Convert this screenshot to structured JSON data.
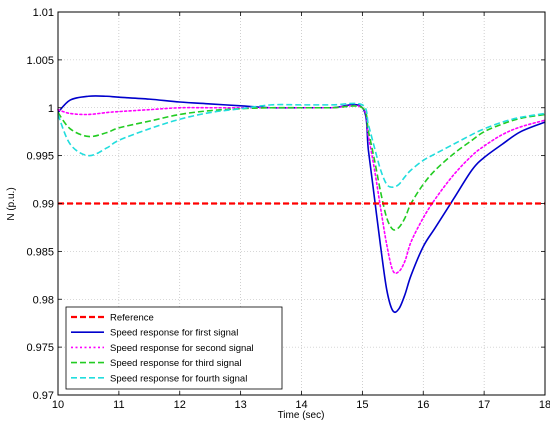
{
  "chart_data": {
    "type": "line",
    "xlabel": "Time (sec)",
    "ylabel": "N (p.u.)",
    "xlim": [
      10,
      18
    ],
    "ylim": [
      0.97,
      1.01
    ],
    "xticks": [
      "10",
      "11",
      "12",
      "13",
      "14",
      "15",
      "16",
      "17",
      "18"
    ],
    "yticks": [
      "0.97",
      "0.975",
      "0.98",
      "0.985",
      "0.99",
      "0.995",
      "1",
      "1.005",
      "1.01"
    ],
    "grid": true,
    "legend_position": "bottom-left",
    "series": [
      {
        "name": "Reference",
        "color": "#ff0000",
        "style": "dashed",
        "x": [
          10,
          18
        ],
        "y": [
          0.99,
          0.99
        ]
      },
      {
        "name": "Speed response for first signal",
        "color": "#0000cc",
        "style": "solid",
        "x": [
          10,
          10.2,
          10.5,
          10.8,
          11,
          11.5,
          12,
          12.5,
          13,
          13.5,
          14,
          14.5,
          15,
          15.1,
          15.2,
          15.3,
          15.4,
          15.5,
          15.6,
          15.7,
          15.8,
          16,
          16.2,
          16.5,
          16.8,
          17,
          17.3,
          17.6,
          18
        ],
        "y": [
          0.9995,
          1.0008,
          1.0012,
          1.0012,
          1.0011,
          1.0009,
          1.0006,
          1.0004,
          1.0002,
          1.0,
          1.0,
          1.0,
          1.0,
          0.9955,
          0.9905,
          0.9855,
          0.981,
          0.9788,
          0.979,
          0.9805,
          0.9825,
          0.9855,
          0.9875,
          0.9905,
          0.9935,
          0.9948,
          0.9962,
          0.9975,
          0.9985
        ]
      },
      {
        "name": "Speed response for second signal",
        "color": "#ff00ff",
        "style": "dotted",
        "x": [
          10,
          10.2,
          10.5,
          10.8,
          11,
          11.5,
          12,
          12.5,
          13,
          13.5,
          14,
          14.5,
          15,
          15.1,
          15.2,
          15.3,
          15.4,
          15.5,
          15.6,
          15.7,
          15.8,
          16,
          16.2,
          16.5,
          16.8,
          17,
          17.3,
          17.6,
          18
        ],
        "y": [
          0.9998,
          0.9994,
          0.9993,
          0.9995,
          0.9996,
          0.9998,
          1.0,
          1.0,
          1.0,
          1.0,
          1.0,
          1.0,
          1.0,
          0.997,
          0.9935,
          0.9895,
          0.9857,
          0.983,
          0.9829,
          0.984,
          0.986,
          0.9885,
          0.9905,
          0.993,
          0.995,
          0.996,
          0.9972,
          0.998,
          0.9987
        ]
      },
      {
        "name": "Speed response for third signal",
        "color": "#22cc22",
        "style": "dashed",
        "x": [
          10,
          10.2,
          10.5,
          10.8,
          11,
          11.5,
          12,
          12.5,
          13,
          13.5,
          14,
          14.5,
          15,
          15.1,
          15.2,
          15.3,
          15.4,
          15.5,
          15.6,
          15.7,
          15.8,
          16,
          16.2,
          16.5,
          16.8,
          17,
          17.3,
          17.6,
          18
        ],
        "y": [
          0.9995,
          0.9978,
          0.997,
          0.9974,
          0.9979,
          0.9986,
          0.9993,
          0.9997,
          0.9999,
          1.0,
          1.0,
          1.0,
          1.0,
          0.9975,
          0.9945,
          0.9912,
          0.9885,
          0.9873,
          0.9875,
          0.9885,
          0.99,
          0.992,
          0.9935,
          0.9952,
          0.9966,
          0.9975,
          0.9983,
          0.9989,
          0.9993
        ]
      },
      {
        "name": "Speed response for fourth signal",
        "color": "#22dddd",
        "style": "dashed",
        "x": [
          10,
          10.2,
          10.5,
          10.8,
          11,
          11.5,
          12,
          12.5,
          13,
          13.5,
          14,
          14.5,
          15,
          15.1,
          15.2,
          15.3,
          15.4,
          15.5,
          15.6,
          15.7,
          15.8,
          16,
          16.2,
          16.5,
          16.8,
          17,
          17.3,
          17.6,
          18
        ],
        "y": [
          0.9993,
          0.9962,
          0.995,
          0.9958,
          0.9966,
          0.9978,
          0.9988,
          0.9995,
          0.9999,
          1.0003,
          1.0003,
          1.0003,
          1.0003,
          0.9982,
          0.9958,
          0.9935,
          0.992,
          0.9917,
          0.992,
          0.9928,
          0.9935,
          0.9945,
          0.9952,
          0.9962,
          0.9972,
          0.9978,
          0.9985,
          0.999,
          0.9994
        ]
      }
    ]
  }
}
